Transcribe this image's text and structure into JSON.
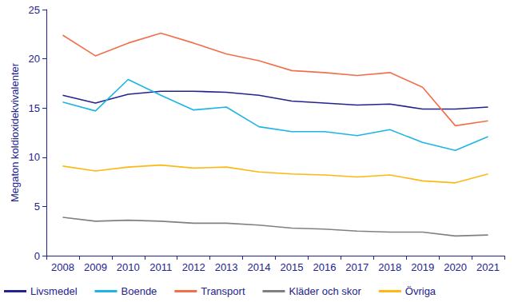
{
  "chart_data": {
    "type": "line",
    "y_label": "Megaton koldioxidekvivalenter",
    "categories": [
      "2008",
      "2009",
      "2010",
      "2011",
      "2012",
      "2013",
      "2014",
      "2015",
      "2016",
      "2017",
      "2018",
      "2019",
      "2020",
      "2021"
    ],
    "series": [
      {
        "name": "Livsmedel",
        "color": "#23238e",
        "values": [
          16.3,
          15.5,
          16.4,
          16.7,
          16.7,
          16.6,
          16.3,
          15.7,
          15.5,
          15.3,
          15.4,
          14.9,
          14.9,
          15.1
        ]
      },
      {
        "name": "Boende",
        "color": "#1eb4e6",
        "values": [
          15.6,
          14.7,
          17.9,
          16.3,
          14.8,
          15.1,
          13.1,
          12.6,
          12.6,
          12.2,
          12.8,
          11.5,
          10.7,
          12.1
        ]
      },
      {
        "name": "Transport",
        "color": "#f26f4b",
        "values": [
          22.4,
          20.3,
          21.6,
          22.6,
          21.6,
          20.5,
          19.8,
          18.8,
          18.6,
          18.3,
          18.6,
          17.1,
          13.2,
          13.7
        ]
      },
      {
        "name": "Kläder och skor",
        "color": "#808080",
        "values": [
          3.9,
          3.5,
          3.6,
          3.5,
          3.3,
          3.3,
          3.1,
          2.8,
          2.7,
          2.5,
          2.4,
          2.4,
          2.0,
          2.1
        ]
      },
      {
        "name": "Övriga",
        "color": "#fdb813",
        "values": [
          9.1,
          8.6,
          9.0,
          9.2,
          8.9,
          9.0,
          8.5,
          8.3,
          8.2,
          8.0,
          8.2,
          7.6,
          7.4,
          8.3
        ]
      }
    ],
    "ylim": [
      0,
      25
    ],
    "yticks": [
      0,
      5,
      10,
      15,
      20,
      25
    ],
    "grid": false,
    "legend": "bottom"
  }
}
